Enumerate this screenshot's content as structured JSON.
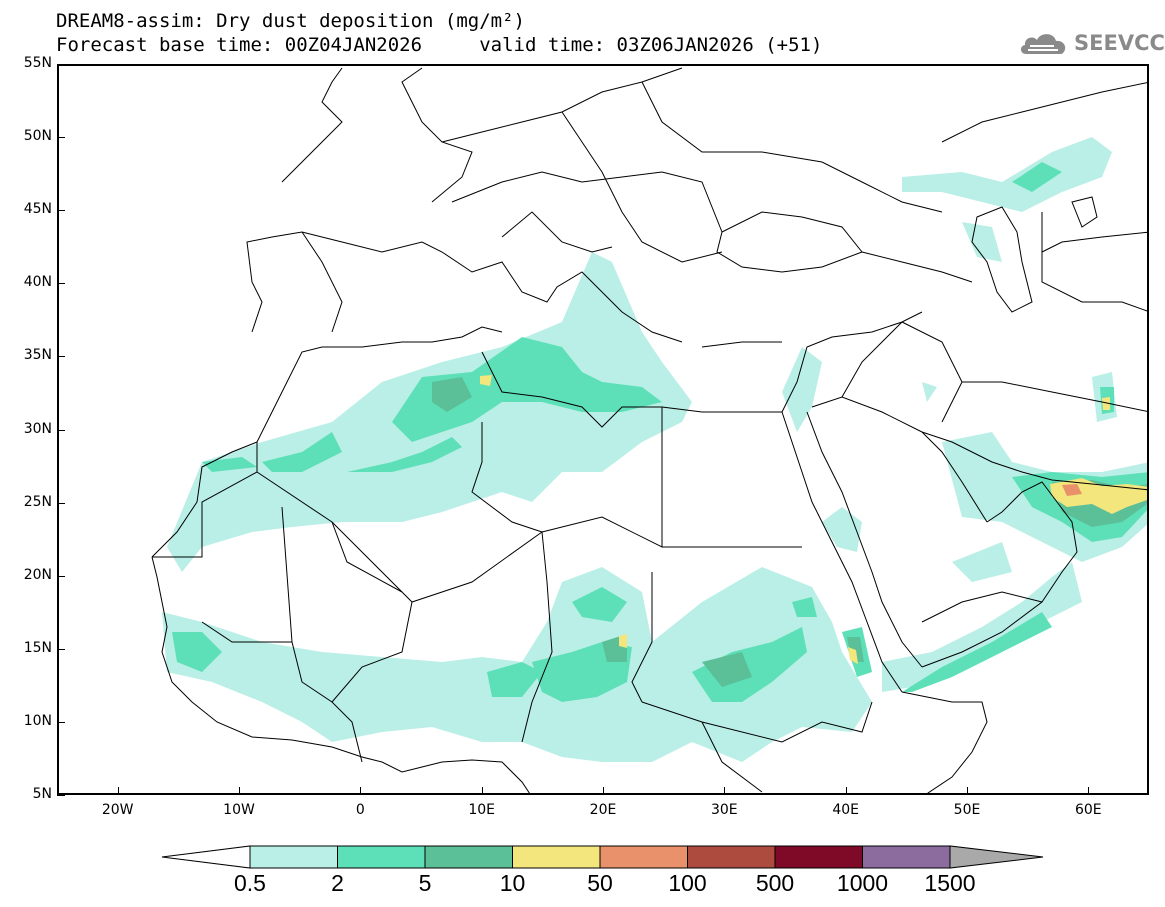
{
  "title": {
    "line1": "DREAM8-assim: Dry dust deposition (mg/m²)",
    "line2": "Forecast base time: 00Z04JAN2026     valid time: 03Z06JAN2026 (+51)"
  },
  "logo": {
    "text": "SEEVCCC",
    "icon": "cloud-logo-icon"
  },
  "map": {
    "lon_range": [
      -25,
      65
    ],
    "lat_range": [
      5,
      55
    ],
    "lat_labels": [
      "55N",
      "50N",
      "45N",
      "40N",
      "35N",
      "30N",
      "25N",
      "20N",
      "15N",
      "10N",
      "5N"
    ],
    "lon_labels": [
      "20W",
      "10W",
      "0",
      "10E",
      "20E",
      "30E",
      "40E",
      "50E",
      "60E"
    ]
  },
  "legend": {
    "labels": [
      "0.5",
      "2",
      "5",
      "10",
      "50",
      "100",
      "500",
      "1000",
      "1500"
    ],
    "colors": [
      "#b9efe6",
      "#5de0b8",
      "#5bbf98",
      "#f2e67c",
      "#e8916a",
      "#ae4b3f",
      "#7e0a27",
      "#8c6b9f"
    ],
    "under_color": "#ffffff",
    "over_color": "#a9a9a9"
  }
}
